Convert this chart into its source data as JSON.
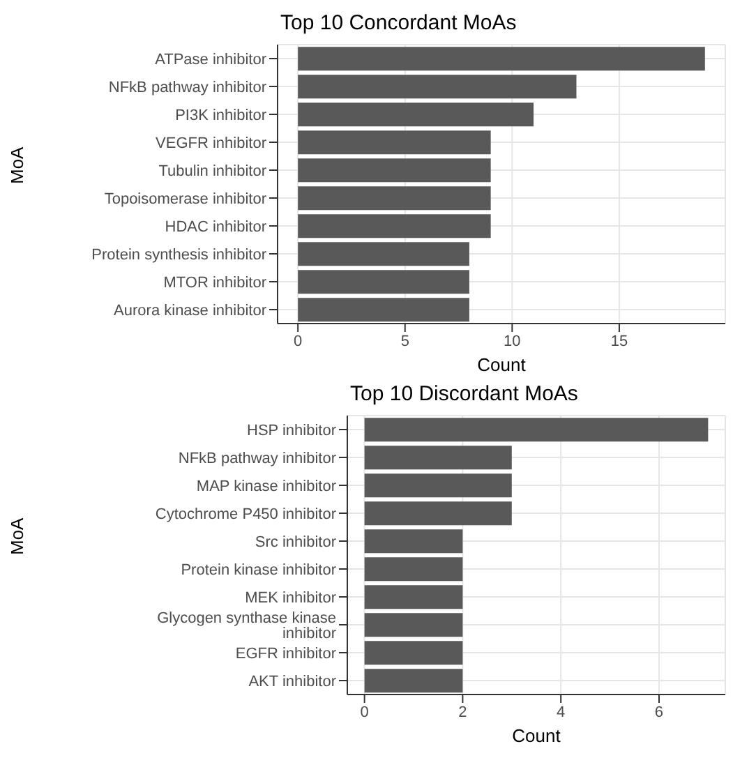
{
  "chart_data": [
    {
      "type": "bar",
      "orientation": "horizontal",
      "title": "Top 10 Concordant MoAs",
      "xlabel": "Count",
      "ylabel": "MoA",
      "categories": [
        "ATPase inhibitor",
        "NFkB pathway inhibitor",
        "PI3K inhibitor",
        "VEGFR inhibitor",
        "Tubulin inhibitor",
        "Topoisomerase inhibitor",
        "HDAC inhibitor",
        "Protein synthesis inhibitor",
        "MTOR inhibitor",
        "Aurora kinase inhibitor"
      ],
      "values": [
        19,
        13,
        11,
        9,
        9,
        9,
        9,
        8,
        8,
        8
      ],
      "color": "#595959",
      "xlim": [
        -0.95,
        19.95
      ],
      "xticks": [
        0,
        5,
        10,
        15
      ],
      "grid": true
    },
    {
      "type": "bar",
      "orientation": "horizontal",
      "title": "Top 10 Discordant MoAs",
      "xlabel": "Count",
      "ylabel": "MoA",
      "categories": [
        "HSP inhibitor",
        "NFkB pathway inhibitor",
        "MAP kinase inhibitor",
        "Cytochrome P450 inhibitor",
        "Src inhibitor",
        "Protein kinase inhibitor",
        "MEK inhibitor",
        "Glycogen synthase kinase inhibitor",
        "EGFR inhibitor",
        "AKT inhibitor"
      ],
      "values": [
        7,
        3,
        3,
        3,
        2,
        2,
        2,
        2,
        2,
        2
      ],
      "color": "#595959",
      "xlim": [
        -0.35,
        7.35
      ],
      "xticks": [
        0,
        2,
        4,
        6
      ],
      "grid": true
    }
  ]
}
